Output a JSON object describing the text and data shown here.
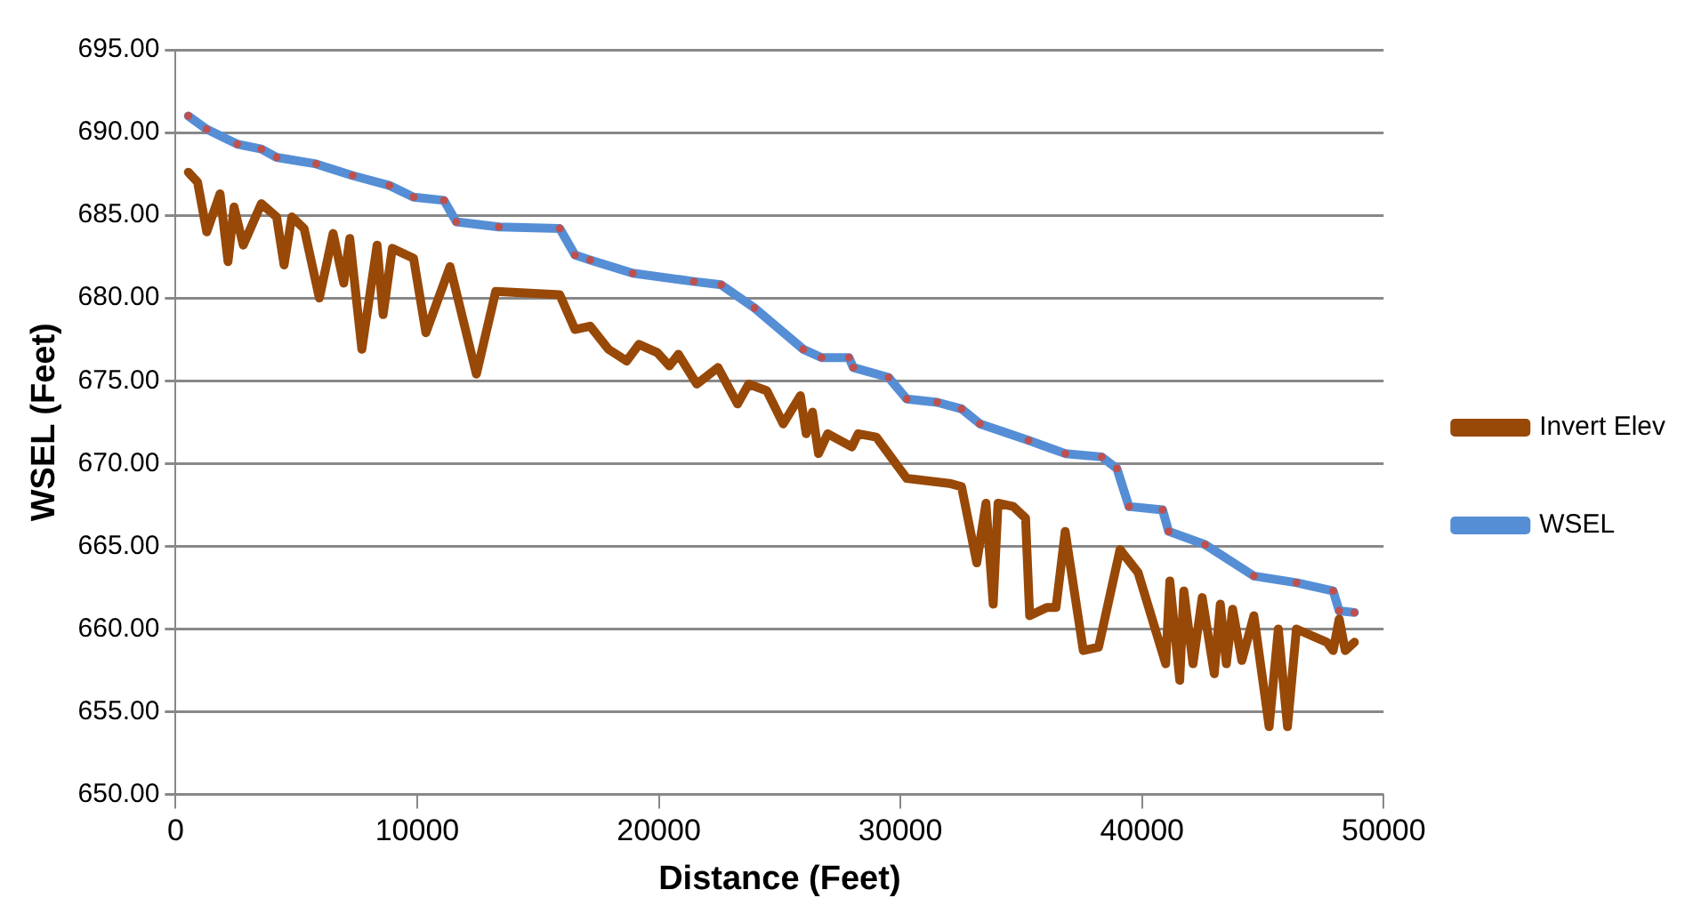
{
  "chart_data": {
    "type": "line",
    "xlabel": "Distance (Feet)",
    "ylabel": "WSEL (Feet)",
    "xlim": [
      0,
      50000
    ],
    "xticks": [
      0,
      10000,
      20000,
      30000,
      40000,
      50000
    ],
    "ylim": [
      650,
      695
    ],
    "yticks": [
      {
        "value": 650,
        "label": "650.00"
      },
      {
        "value": 655,
        "label": "655.00"
      },
      {
        "value": 660,
        "label": "660.00"
      },
      {
        "value": 665,
        "label": "665.00"
      },
      {
        "value": 670,
        "label": "670.00"
      },
      {
        "value": 675,
        "label": "675.00"
      },
      {
        "value": 680,
        "label": "680.00"
      },
      {
        "value": 685,
        "label": "685.00"
      },
      {
        "value": 690,
        "label": "690.00"
      },
      {
        "value": 695,
        "label": "695.00"
      }
    ],
    "grid": "y",
    "legend": "right",
    "series": [
      {
        "name": "Invert Elev",
        "color": "#984807",
        "marker": "none",
        "x": [
          530,
          910,
          1290,
          1840,
          2170,
          2420,
          2800,
          3550,
          4180,
          4490,
          4810,
          5320,
          5950,
          6520,
          6960,
          7210,
          7710,
          8340,
          8590,
          8970,
          9850,
          10360,
          11360,
          12450,
          13250,
          15900,
          16530,
          17160,
          17920,
          18670,
          19180,
          19940,
          20440,
          20810,
          21570,
          22450,
          23260,
          23720,
          24470,
          25150,
          25860,
          26100,
          26360,
          26610,
          26990,
          27990,
          28250,
          29000,
          30260,
          32030,
          32530,
          33160,
          33540,
          33840,
          34040,
          34670,
          35180,
          35350,
          36060,
          36440,
          36820,
          37570,
          38200,
          39090,
          39840,
          40980,
          41150,
          41560,
          41730,
          42110,
          42490,
          42990,
          43240,
          43490,
          43750,
          44130,
          44630,
          45260,
          45640,
          46020,
          46390,
          47650,
          47910,
          48160,
          48410,
          48790
        ],
        "values": [
          687.6,
          687.0,
          684.0,
          686.3,
          682.2,
          685.5,
          683.2,
          685.7,
          684.9,
          682.0,
          684.9,
          684.2,
          680.0,
          683.9,
          680.9,
          683.6,
          676.9,
          683.2,
          679.0,
          683.0,
          682.4,
          677.9,
          681.9,
          675.4,
          680.4,
          680.2,
          678.1,
          678.3,
          676.9,
          676.2,
          677.2,
          676.7,
          675.9,
          676.6,
          674.8,
          675.8,
          673.6,
          674.8,
          674.4,
          672.4,
          674.1,
          671.8,
          673.1,
          670.6,
          671.8,
          671.0,
          671.8,
          671.6,
          669.1,
          668.8,
          668.6,
          664.0,
          667.6,
          661.5,
          667.6,
          667.4,
          666.7,
          660.8,
          661.3,
          661.3,
          665.9,
          658.7,
          658.9,
          664.8,
          663.4,
          657.9,
          662.9,
          656.9,
          662.3,
          657.9,
          661.9,
          657.3,
          661.5,
          657.9,
          661.2,
          658.1,
          660.8,
          654.1,
          660.0,
          654.1,
          660.0,
          659.2,
          658.7,
          660.6,
          658.7,
          659.2
        ]
      },
      {
        "name": "WSEL",
        "color": "#558ed5",
        "marker": "circle",
        "x": [
          530,
          1285,
          2550,
          3550,
          4180,
          5820,
          7330,
          8850,
          9850,
          11110,
          11620,
          13380,
          15900,
          16530,
          17160,
          18920,
          21450,
          22580,
          23960,
          25980,
          26740,
          27870,
          28050,
          29510,
          30260,
          31520,
          32530,
          33290,
          35300,
          36820,
          38330,
          38960,
          39460,
          40850,
          41100,
          42610,
          44630,
          46390,
          47910,
          48160,
          48790
        ],
        "values": [
          691.0,
          690.2,
          689.3,
          689.0,
          688.5,
          688.1,
          687.4,
          686.8,
          686.1,
          685.9,
          684.6,
          684.3,
          684.2,
          682.6,
          682.3,
          681.5,
          681.0,
          680.8,
          679.4,
          676.9,
          676.4,
          676.4,
          675.8,
          675.2,
          673.9,
          673.7,
          673.3,
          672.4,
          671.4,
          670.6,
          670.4,
          669.7,
          667.4,
          667.2,
          665.9,
          665.1,
          663.2,
          662.8,
          662.3,
          661.1,
          661.0
        ]
      }
    ]
  }
}
